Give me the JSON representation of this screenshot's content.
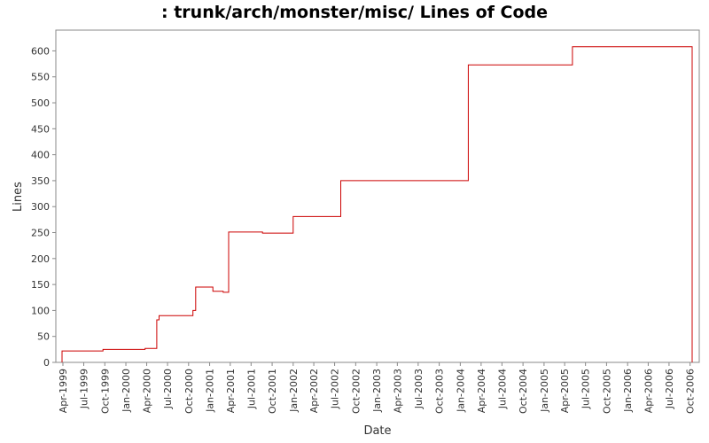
{
  "chart_data": {
    "type": "line",
    "title": ": trunk/arch/monster/misc/ Lines of Code",
    "xlabel": "Date",
    "ylabel": "Lines",
    "ylim": [
      0,
      640
    ],
    "xlim": [
      "1999-03-01",
      "2006-11-10"
    ],
    "y_ticks": [
      0,
      50,
      100,
      150,
      200,
      250,
      300,
      350,
      400,
      450,
      500,
      550,
      600
    ],
    "x_ticks": [
      {
        "label": "Apr-1999",
        "date": "1999-04-01"
      },
      {
        "label": "Jul-1999",
        "date": "1999-07-01"
      },
      {
        "label": "Oct-1999",
        "date": "1999-10-01"
      },
      {
        "label": "Jan-2000",
        "date": "2000-01-01"
      },
      {
        "label": "Apr-2000",
        "date": "2000-04-01"
      },
      {
        "label": "Jul-2000",
        "date": "2000-07-01"
      },
      {
        "label": "Oct-2000",
        "date": "2000-10-01"
      },
      {
        "label": "Jan-2001",
        "date": "2001-01-01"
      },
      {
        "label": "Apr-2001",
        "date": "2001-04-01"
      },
      {
        "label": "Jul-2001",
        "date": "2001-07-01"
      },
      {
        "label": "Oct-2001",
        "date": "2001-10-01"
      },
      {
        "label": "Jan-2002",
        "date": "2002-01-01"
      },
      {
        "label": "Apr-2002",
        "date": "2002-04-01"
      },
      {
        "label": "Jul-2002",
        "date": "2002-07-01"
      },
      {
        "label": "Oct-2002",
        "date": "2002-10-01"
      },
      {
        "label": "Jan-2003",
        "date": "2003-01-01"
      },
      {
        "label": "Apr-2003",
        "date": "2003-04-01"
      },
      {
        "label": "Jul-2003",
        "date": "2003-07-01"
      },
      {
        "label": "Oct-2003",
        "date": "2003-10-01"
      },
      {
        "label": "Jan-2004",
        "date": "2004-01-01"
      },
      {
        "label": "Apr-2004",
        "date": "2004-04-01"
      },
      {
        "label": "Jul-2004",
        "date": "2004-07-01"
      },
      {
        "label": "Oct-2004",
        "date": "2004-10-01"
      },
      {
        "label": "Jan-2005",
        "date": "2005-01-01"
      },
      {
        "label": "Apr-2005",
        "date": "2005-04-01"
      },
      {
        "label": "Jul-2005",
        "date": "2005-07-01"
      },
      {
        "label": "Oct-2005",
        "date": "2005-10-01"
      },
      {
        "label": "Jan-2006",
        "date": "2006-01-01"
      },
      {
        "label": "Apr-2006",
        "date": "2006-04-01"
      },
      {
        "label": "Jul-2006",
        "date": "2006-07-01"
      },
      {
        "label": "Oct-2006",
        "date": "2006-10-01"
      }
    ],
    "grid": false,
    "line_color": "#cc0000",
    "series": [
      {
        "step": true,
        "points": [
          {
            "x": "1999-03-28",
            "y": 0
          },
          {
            "x": "1999-03-28",
            "y": 22
          },
          {
            "x": "1999-09-23",
            "y": 25
          },
          {
            "x": "2000-03-25",
            "y": 27
          },
          {
            "x": "2000-05-15",
            "y": 82
          },
          {
            "x": "2000-05-25",
            "y": 90
          },
          {
            "x": "2000-10-20",
            "y": 100
          },
          {
            "x": "2000-11-01",
            "y": 145
          },
          {
            "x": "2001-01-15",
            "y": 137
          },
          {
            "x": "2001-03-01",
            "y": 135
          },
          {
            "x": "2001-03-25",
            "y": 251
          },
          {
            "x": "2001-08-20",
            "y": 249
          },
          {
            "x": "2002-01-01",
            "y": 281
          },
          {
            "x": "2002-07-28",
            "y": 350
          },
          {
            "x": "2004-02-05",
            "y": 573
          },
          {
            "x": "2005-05-05",
            "y": 608
          },
          {
            "x": "2006-10-10",
            "y": 0
          }
        ]
      }
    ]
  }
}
